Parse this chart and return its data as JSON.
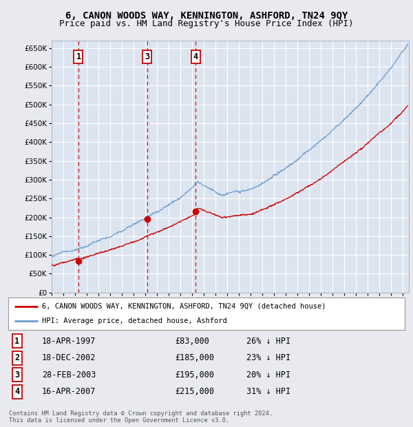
{
  "title": "6, CANON WOODS WAY, KENNINGTON, ASHFORD, TN24 9QY",
  "subtitle": "Price paid vs. HM Land Registry's House Price Index (HPI)",
  "xlim": [
    1995.0,
    2025.5
  ],
  "ylim": [
    0,
    670000
  ],
  "yticks": [
    0,
    50000,
    100000,
    150000,
    200000,
    250000,
    300000,
    350000,
    400000,
    450000,
    500000,
    550000,
    600000,
    650000
  ],
  "transactions": [
    {
      "num": 1,
      "date_label": "18-APR-1997",
      "year": 1997.29,
      "price": 83000,
      "pct": "26% ↓ HPI"
    },
    {
      "num": 2,
      "date_label": "18-DEC-2002",
      "year": 2002.96,
      "price": 185000,
      "pct": "23% ↓ HPI"
    },
    {
      "num": 3,
      "date_label": "28-FEB-2003",
      "year": 2003.16,
      "price": 195000,
      "pct": "20% ↓ HPI"
    },
    {
      "num": 4,
      "date_label": "16-APR-2007",
      "year": 2007.29,
      "price": 215000,
      "pct": "31% ↓ HPI"
    }
  ],
  "vline_transactions": [
    1,
    3,
    4
  ],
  "legend_label_red": "6, CANON WOODS WAY, KENNINGTON, ASHFORD, TN24 9QY (detached house)",
  "legend_label_blue": "HPI: Average price, detached house, Ashford",
  "footer": "Contains HM Land Registry data © Crown copyright and database right 2024.\nThis data is licensed under the Open Government Licence v3.0.",
  "bg_color": "#e8eaf0",
  "plot_bg_color": "#dce4f0",
  "grid_color": "#ffffff",
  "red_color": "#cc0000",
  "blue_color": "#6699cc",
  "vline_color": "#cc0000",
  "title_fontsize": 10,
  "subtitle_fontsize": 9
}
